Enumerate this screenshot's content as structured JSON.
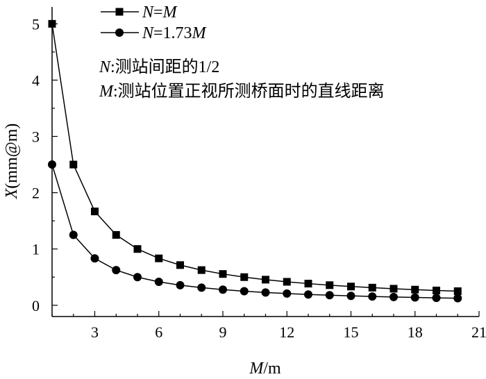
{
  "chart_data": {
    "type": "line",
    "x": [
      1,
      2,
      3,
      4,
      5,
      6,
      7,
      8,
      9,
      10,
      11,
      12,
      13,
      14,
      15,
      16,
      17,
      18,
      19,
      20
    ],
    "series": [
      {
        "name": "N=M",
        "name_parts": {
          "a": "N",
          "eq": "=",
          "b": "M"
        },
        "marker": "square",
        "values": [
          5.0,
          2.5,
          1.667,
          1.25,
          1.0,
          0.833,
          0.714,
          0.625,
          0.556,
          0.5,
          0.455,
          0.417,
          0.385,
          0.357,
          0.333,
          0.313,
          0.294,
          0.278,
          0.263,
          0.25
        ]
      },
      {
        "name": "N=1.73M",
        "name_parts": {
          "a": "N",
          "eq": "=1.73",
          "b": "M"
        },
        "marker": "circle",
        "values": [
          2.5,
          1.25,
          0.833,
          0.625,
          0.5,
          0.417,
          0.357,
          0.313,
          0.278,
          0.25,
          0.227,
          0.208,
          0.192,
          0.179,
          0.167,
          0.156,
          0.147,
          0.139,
          0.132,
          0.125
        ]
      }
    ],
    "xlim": [
      1,
      21
    ],
    "ylim": [
      -0.2,
      5.3
    ],
    "xticks": [
      3,
      6,
      9,
      12,
      15,
      18,
      21
    ],
    "yticks": [
      0,
      1,
      2,
      3,
      4,
      5
    ],
    "xlabel": {
      "var": "M",
      "unit": "/m"
    },
    "ylabel": {
      "var": "X",
      "unit": "(mm@m)"
    },
    "legend_position": "top-left",
    "grid": false,
    "annotations": [
      {
        "var": "N",
        "text": ":测站间距的1/2"
      },
      {
        "var": "M",
        "text": ":测站位置正视所测桥面时的直线距离"
      }
    ]
  }
}
